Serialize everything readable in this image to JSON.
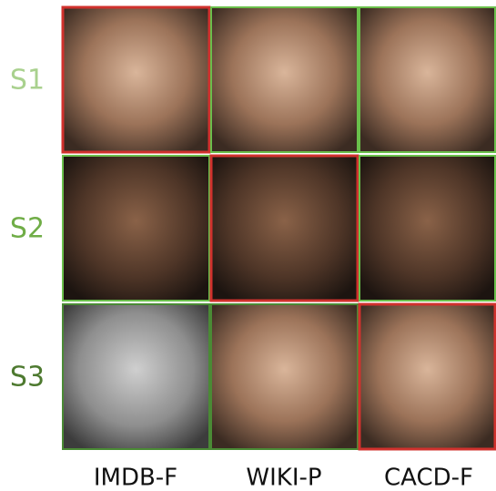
{
  "row_labels": [
    "S1",
    "S2",
    "S3"
  ],
  "column_labels": [
    "IMDB-F",
    "WIKI-P",
    "CACD-F"
  ]
}
